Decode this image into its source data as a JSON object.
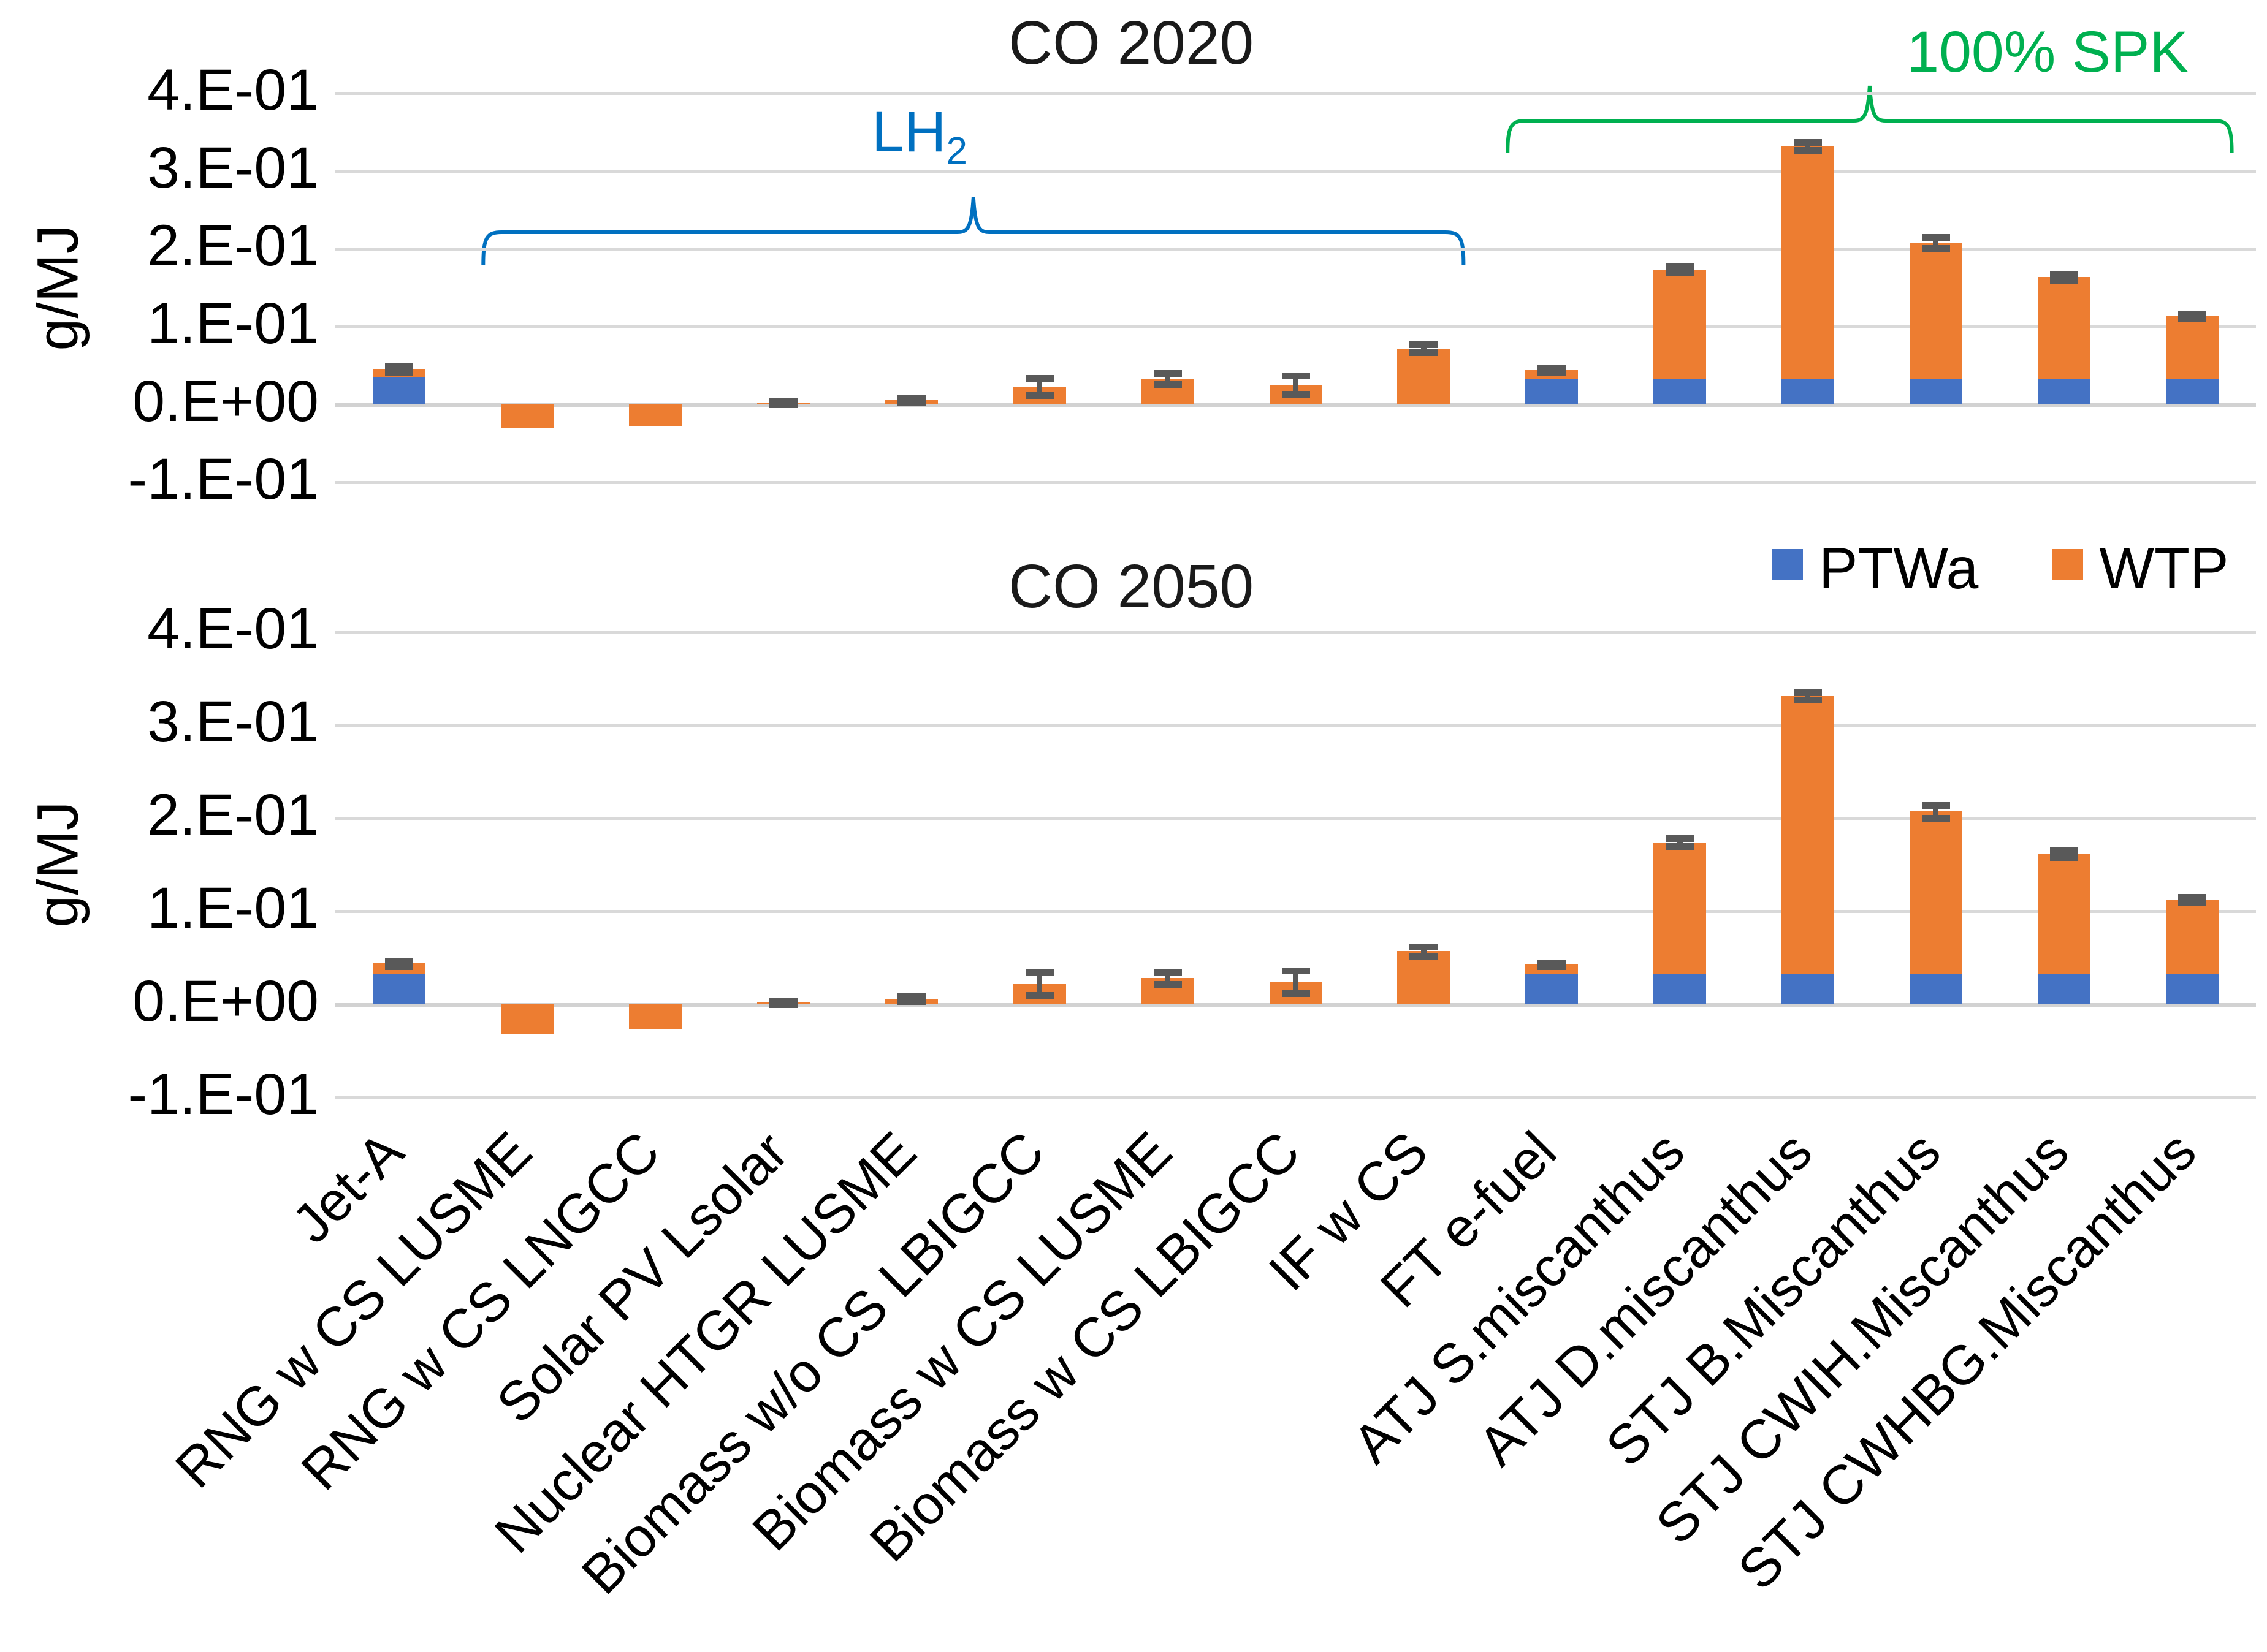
{
  "y_axis": {
    "label": "g/MJ",
    "tick_labels": [
      "4.E-01",
      "3.E-01",
      "2.E-01",
      "1.E-01",
      "0.E+00",
      "-1.E-01"
    ],
    "tick_values": [
      0.4,
      0.3,
      0.2,
      0.1,
      0.0,
      -0.1
    ]
  },
  "legend": {
    "items": [
      {
        "label": "PTWa",
        "color": "#4472C4"
      },
      {
        "label": "WTP",
        "color": "#ED7D31"
      }
    ]
  },
  "annotations": {
    "lh2": {
      "label_base": "LH",
      "label_sub": "2",
      "color": "#0070C0",
      "from": "RNG w CS LUSME",
      "to": "IF w CS"
    },
    "spk": {
      "label": "100% SPK",
      "color": "#00B050",
      "from": "FT e-fuel",
      "to": "STJ CWHBG.Miscanthus"
    }
  },
  "error_bar_color": "#595959",
  "chart_data": [
    {
      "type": "bar",
      "stacked": true,
      "title": "CO 2020",
      "ylabel": "g/MJ",
      "ylim": [
        -0.1,
        0.4
      ],
      "grid": true,
      "legend_position": "between-charts-right",
      "categories": [
        "Jet-A",
        "RNG w CS LUSME",
        "RNG w CS LNGCC",
        "Solar PV Lsolar",
        "Nuclear HTGR LUSME",
        "Biomass w/o CS LBIGCC",
        "Biomass w CS LUSME",
        "Biomass w CS LBIGCC",
        "IF w CS",
        "FT e-fuel",
        "ATJ S.miscanthus",
        "ATJ D.miscanthus",
        "STJ B.Miscanthus",
        "STJ CWIH.Miscanthus",
        "STJ CWHBG.Miscanthus"
      ],
      "series": [
        {
          "name": "PTWa",
          "color": "#4472C4",
          "values": [
            0.035,
            0,
            0,
            0,
            0,
            0,
            0,
            0,
            0,
            0.032,
            0.032,
            0.032,
            0.033,
            0.033,
            0.033
          ]
        },
        {
          "name": "WTP",
          "color": "#ED7D31",
          "values": [
            0.011,
            -0.031,
            -0.028,
            0.002,
            0.006,
            0.023,
            0.033,
            0.025,
            0.072,
            0.012,
            0.141,
            0.3,
            0.175,
            0.131,
            0.08
          ]
        }
      ],
      "error_plus_minus": [
        0.004,
        null,
        null,
        0.002,
        0.003,
        0.011,
        0.007,
        0.012,
        0.005,
        0.003,
        0.004,
        0.005,
        0.007,
        0.004,
        0.003
      ]
    },
    {
      "type": "bar",
      "stacked": true,
      "title": "CO 2050",
      "ylabel": "g/MJ",
      "ylim": [
        -0.1,
        0.4
      ],
      "grid": true,
      "categories": [
        "Jet-A",
        "RNG w CS LUSME",
        "RNG w CS LNGCC",
        "Solar PV Lsolar",
        "Nuclear HTGR LUSME",
        "Biomass w/o CS LBIGCC",
        "Biomass w CS LUSME",
        "Biomass w CS LBIGCC",
        "IF w CS",
        "FT e-fuel",
        "ATJ S.miscanthus",
        "ATJ D.miscanthus",
        "STJ B.Miscanthus",
        "STJ CWIH.Miscanthus",
        "STJ CWHBG.Miscanthus"
      ],
      "series": [
        {
          "name": "PTWa",
          "color": "#4472C4",
          "values": [
            0.033,
            0,
            0,
            0,
            0,
            0,
            0,
            0,
            0,
            0.033,
            0.033,
            0.033,
            0.033,
            0.033,
            0.033
          ]
        },
        {
          "name": "WTP",
          "color": "#ED7D31",
          "values": [
            0.011,
            -0.032,
            -0.026,
            0.002,
            0.006,
            0.022,
            0.028,
            0.024,
            0.057,
            0.01,
            0.141,
            0.298,
            0.174,
            0.129,
            0.079
          ]
        }
      ],
      "error_plus_minus": [
        0.003,
        null,
        null,
        0.002,
        0.003,
        0.012,
        0.006,
        0.012,
        0.005,
        0.002,
        0.004,
        0.004,
        0.007,
        0.004,
        0.003
      ]
    }
  ]
}
